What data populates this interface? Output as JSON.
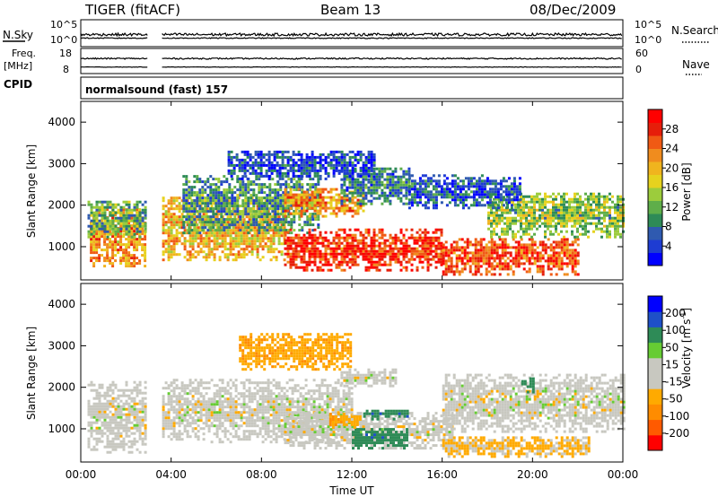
{
  "header": {
    "station": "TIGER (fitACF)",
    "beam": "Beam 13",
    "date": "08/Dec/2009"
  },
  "top_panels": {
    "nsky_label": "N.Sky",
    "nsearch_label": "N.Search",
    "nsky_ticks": [
      "10^5",
      "10^0"
    ],
    "nsearch_ticks": [
      "10^5",
      "10^0"
    ],
    "freq_label_1": "Freq.",
    "freq_label_2": "[MHz]",
    "freq_ticks": [
      "18",
      "8"
    ],
    "nave_label": "Nave",
    "nave_ticks": [
      "60",
      "0"
    ],
    "cpid_label": "CPID",
    "cpid_value": "normalsound (fast) 157"
  },
  "chart_data": [
    {
      "type": "heatmap",
      "quantity": "power",
      "ylabel": "Slant Range [km]",
      "colorbar_label": "Power [dB]",
      "colorbar_ticks": [
        "28",
        "24",
        "20",
        "16",
        "12",
        "8",
        "4"
      ],
      "colorbar_range": [
        0,
        32
      ],
      "colorbar_colors": [
        "#0000ff",
        "#1e3cd2",
        "#2f5ab0",
        "#2e8b57",
        "#5fae4a",
        "#9ccc3c",
        "#e6d21e",
        "#f0b41e",
        "#f08c1e",
        "#f05a14",
        "#e61e0a",
        "#ff0000"
      ],
      "y_ticks": [
        "1000",
        "2000",
        "3000",
        "4000"
      ],
      "ylim": [
        200,
        4500
      ],
      "x_range_hours": [
        0,
        24
      ],
      "data_gap_hours": [
        2.95,
        3.55
      ],
      "echo_regions": [
        {
          "t0": 0.4,
          "t1": 2.9,
          "r0": 500,
          "r1": 1900,
          "level": 22
        },
        {
          "t0": 0.3,
          "t1": 2.9,
          "r0": 1200,
          "r1": 2100,
          "level": 12
        },
        {
          "t0": 3.6,
          "t1": 9.0,
          "r0": 650,
          "r1": 2150,
          "level": 20
        },
        {
          "t0": 4.5,
          "t1": 10.5,
          "r0": 1300,
          "r1": 2700,
          "level": 10
        },
        {
          "t0": 9.0,
          "t1": 12.5,
          "r0": 1700,
          "r1": 2350,
          "level": 22
        },
        {
          "t0": 9.0,
          "t1": 16.0,
          "r0": 400,
          "r1": 1400,
          "level": 28
        },
        {
          "t0": 11.5,
          "t1": 14.5,
          "r0": 2000,
          "r1": 2900,
          "level": 8
        },
        {
          "t0": 16.0,
          "t1": 22.0,
          "r0": 300,
          "r1": 1200,
          "level": 26
        },
        {
          "t0": 18.0,
          "t1": 24.0,
          "r0": 1200,
          "r1": 2300,
          "level": 14
        },
        {
          "t0": 14.5,
          "t1": 19.5,
          "r0": 1900,
          "r1": 2700,
          "level": 6
        },
        {
          "t0": 6.5,
          "t1": 13.0,
          "r0": 2600,
          "r1": 3300,
          "level": 5
        }
      ]
    },
    {
      "type": "heatmap",
      "quantity": "velocity",
      "ylabel": "Slant Range [km]",
      "colorbar_label_1": "Velocity",
      "colorbar_label_2": "[m s",
      "colorbar_label_exp": "-1",
      "colorbar_label_3": "]",
      "colorbar_ticks": [
        "200",
        "100",
        "50",
        "15",
        "-15",
        "-50",
        "-100",
        "-200"
      ],
      "colorbar_colors": [
        "#ff0000",
        "#ff5a00",
        "#ff8c00",
        "#ffaa00",
        "#c8c8c0",
        "#c8c8c0",
        "#66cc33",
        "#2e8b57",
        "#1e50c8",
        "#0000ff"
      ],
      "y_ticks": [
        "1000",
        "2000",
        "3000",
        "4000"
      ],
      "ylim": [
        200,
        4500
      ],
      "x_range_hours": [
        0,
        24
      ],
      "data_gap_hours": [
        2.95,
        3.55
      ],
      "echo_regions": [
        {
          "t0": 0.3,
          "t1": 2.9,
          "r0": 400,
          "r1": 2100,
          "level": 0
        },
        {
          "t0": 3.6,
          "t1": 12.0,
          "r0": 650,
          "r1": 2150,
          "level": 0
        },
        {
          "t0": 9.0,
          "t1": 16.5,
          "r0": 500,
          "r1": 1350,
          "level": 0
        },
        {
          "t0": 11.5,
          "t1": 14.0,
          "r0": 2000,
          "r1": 2400,
          "level": 0
        },
        {
          "t0": 16.0,
          "t1": 24.0,
          "r0": 900,
          "r1": 2300,
          "level": 0
        },
        {
          "t0": 12.0,
          "t1": 14.5,
          "r0": 500,
          "r1": 1000,
          "level": 60
        },
        {
          "t0": 12.5,
          "t1": 14.5,
          "r0": 1200,
          "r1": 1450,
          "level": 60
        },
        {
          "t0": 11.0,
          "t1": 12.4,
          "r0": 1000,
          "r1": 1350,
          "level": -40
        },
        {
          "t0": 19.5,
          "t1": 20.0,
          "r0": 1850,
          "r1": 2200,
          "level": 60
        },
        {
          "t0": 16.0,
          "t1": 22.5,
          "r0": 300,
          "r1": 800,
          "level": -20
        },
        {
          "t0": 7.0,
          "t1": 12.0,
          "r0": 2400,
          "r1": 3300,
          "level": -40
        }
      ]
    }
  ],
  "x_axis": {
    "ticks": [
      "00:00",
      "04:00",
      "08:00",
      "12:00",
      "16:00",
      "20:00",
      "00:00"
    ],
    "label": "Time UT"
  }
}
